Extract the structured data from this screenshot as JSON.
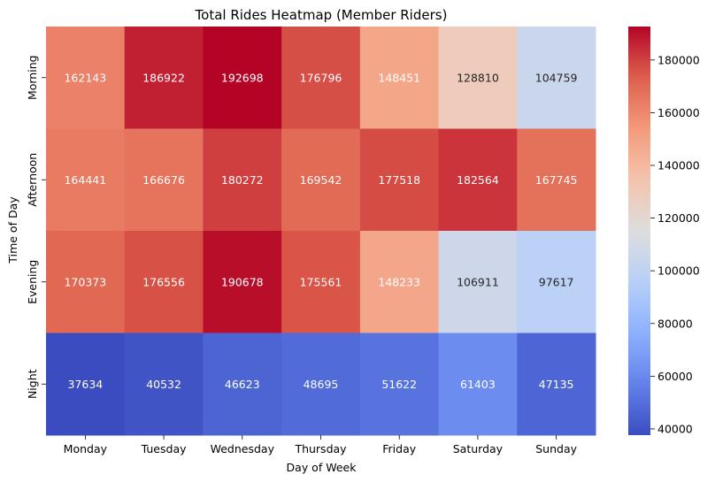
{
  "chart_data": {
    "type": "heatmap",
    "title": "Total Rides Heatmap (Member Riders)",
    "xlabel": "Day of Week",
    "ylabel": "Time of Day",
    "x_categories": [
      "Monday",
      "Tuesday",
      "Wednesday",
      "Thursday",
      "Friday",
      "Saturday",
      "Sunday"
    ],
    "y_categories": [
      "Morning",
      "Afternoon",
      "Evening",
      "Night"
    ],
    "values": [
      [
        162143,
        186922,
        192698,
        176796,
        148451,
        128810,
        104759
      ],
      [
        164441,
        166676,
        180272,
        169542,
        177518,
        182564,
        167745
      ],
      [
        170373,
        176556,
        190678,
        175561,
        148233,
        106911,
        97617
      ],
      [
        37634,
        40532,
        46623,
        48695,
        51622,
        61403,
        47135
      ]
    ],
    "colormap": "coolwarm",
    "colorbar": {
      "min": 37634,
      "max": 192698,
      "ticks": [
        40000,
        60000,
        80000,
        100000,
        120000,
        140000,
        160000,
        180000
      ]
    },
    "legend": "colorbar-right",
    "grid": false
  }
}
